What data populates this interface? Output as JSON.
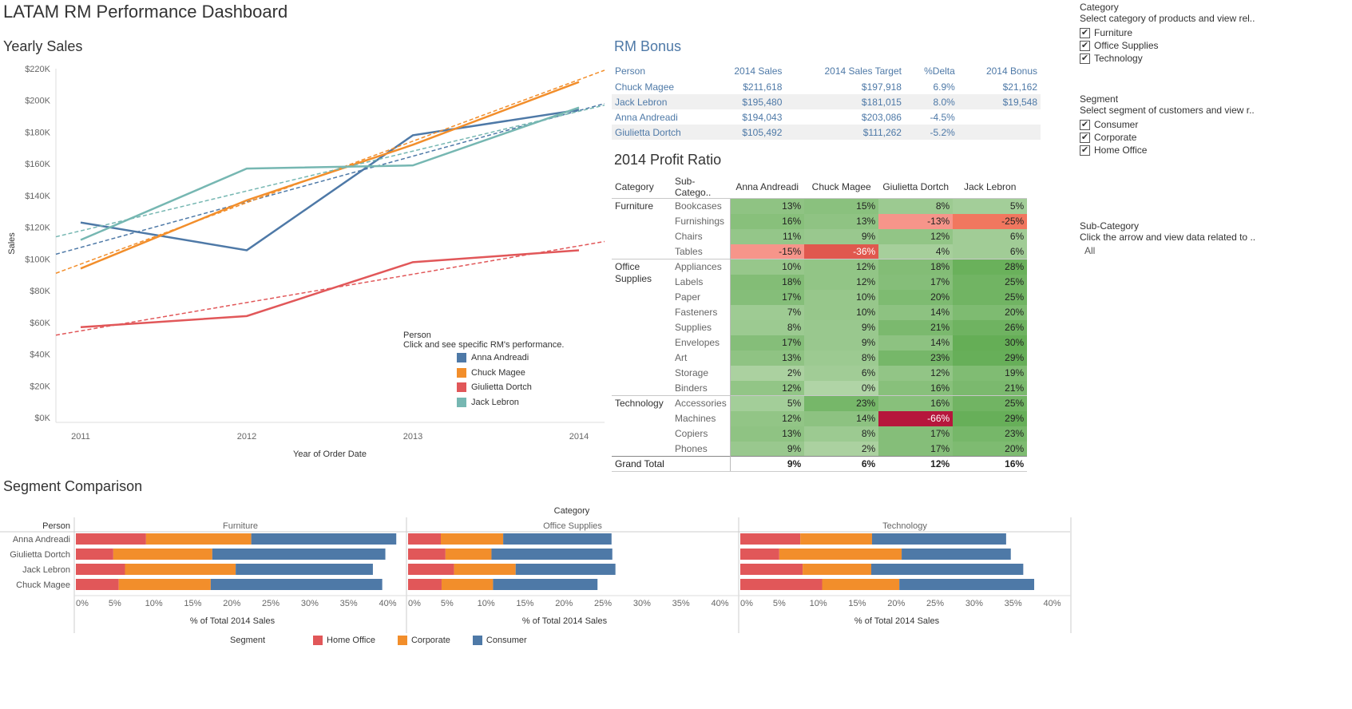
{
  "dashboard_title": "LATAM RM Performance Dashboard",
  "yearly_sales": {
    "title": "Yearly Sales",
    "legend_title": "Person",
    "legend_hint": "Click and see specific RM's performance.",
    "legend_items": [
      {
        "name": "Anna Andreadi",
        "color": "#4e79a7"
      },
      {
        "name": "Chuck Magee",
        "color": "#f28e2b"
      },
      {
        "name": "Giulietta Dortch",
        "color": "#e15759"
      },
      {
        "name": "Jack Lebron",
        "color": "#76b7b2"
      }
    ]
  },
  "chart_data": [
    {
      "type": "line",
      "title": "Yearly Sales",
      "xlabel": "Year of Order Date",
      "ylabel": "Sales",
      "x": [
        "2011",
        "2012",
        "2013",
        "2014"
      ],
      "ylim": [
        0,
        220000
      ],
      "yticks": [
        "$0K",
        "$20K",
        "$40K",
        "$60K",
        "$80K",
        "$100K",
        "$120K",
        "$140K",
        "$160K",
        "$180K",
        "$200K",
        "$220K"
      ],
      "trend_lines": true,
      "series": [
        {
          "name": "Anna Andreadi",
          "color": "#4e79a7",
          "values": [
            123000,
            105500,
            178000,
            194043
          ],
          "trend": [
            103000,
            198000
          ]
        },
        {
          "name": "Chuck Magee",
          "color": "#f28e2b",
          "values": [
            94000,
            137000,
            172000,
            211618
          ],
          "trend": [
            91000,
            219000
          ]
        },
        {
          "name": "Giulietta Dortch",
          "color": "#e15759",
          "values": [
            57000,
            64000,
            98000,
            105492
          ],
          "trend": [
            52000,
            111000
          ]
        },
        {
          "name": "Jack Lebron",
          "color": "#76b7b2",
          "values": [
            112000,
            157000,
            159000,
            195480
          ],
          "trend": [
            114000,
            197000
          ]
        }
      ]
    },
    {
      "type": "bar",
      "title": "Segment Comparison",
      "stacked": true,
      "category_label": "Category",
      "person_label": "Person",
      "xlabel": "% of Total 2014 Sales",
      "xticks": [
        "0%",
        "5%",
        "10%",
        "15%",
        "20%",
        "25%",
        "30%",
        "35%",
        "40%"
      ],
      "xlim": [
        0,
        42
      ],
      "persons": [
        "Anna Andreadi",
        "Giulietta Dortch",
        "Jack Lebron",
        "Chuck Magee"
      ],
      "segments": [
        {
          "name": "Home Office",
          "color": "#e15759"
        },
        {
          "name": "Corporate",
          "color": "#f28e2b"
        },
        {
          "name": "Consumer",
          "color": "#4e79a7"
        }
      ],
      "panels": [
        {
          "category": "Furniture",
          "values": [
            [
              9.0,
              13.5,
              18.6
            ],
            [
              4.8,
              12.7,
              22.2
            ],
            [
              6.3,
              14.2,
              17.6
            ],
            [
              5.5,
              11.8,
              22.0
            ]
          ]
        },
        {
          "category": "Office Supplies",
          "values": [
            [
              4.2,
              8.0,
              13.9
            ],
            [
              4.8,
              5.9,
              15.5
            ],
            [
              5.9,
              7.9,
              12.8
            ],
            [
              4.3,
              6.6,
              13.4
            ]
          ]
        },
        {
          "category": "Technology",
          "values": [
            [
              7.7,
              9.2,
              17.2
            ],
            [
              5.0,
              15.7,
              14.0
            ],
            [
              8.0,
              8.8,
              19.5
            ],
            [
              10.5,
              9.9,
              17.3
            ]
          ]
        }
      ],
      "legend_title": "Segment"
    }
  ],
  "rm_bonus": {
    "title": "RM Bonus",
    "headers": [
      "Person",
      "2014 Sales",
      "2014 Sales Target",
      "%Delta",
      "2014 Bonus"
    ],
    "rows": [
      [
        "Chuck Magee",
        "$211,618",
        "$197,918",
        "6.9%",
        "$21,162"
      ],
      [
        "Jack Lebron",
        "$195,480",
        "$181,015",
        "8.0%",
        "$19,548"
      ],
      [
        "Anna Andreadi",
        "$194,043",
        "$203,086",
        "-4.5%",
        ""
      ],
      [
        "Giulietta Dortch",
        "$105,492",
        "$111,262",
        "-5.2%",
        ""
      ]
    ]
  },
  "profit_ratio": {
    "title": "2014 Profit Ratio",
    "headers": [
      "Category",
      "Sub-Catego..",
      "Anna Andreadi",
      "Chuck Magee",
      "Giulietta Dortch",
      "Jack Lebron"
    ],
    "groups": [
      {
        "category": "Furniture",
        "rows": [
          {
            "sub": "Bookcases",
            "values": [
              13,
              15,
              8,
              5
            ]
          },
          {
            "sub": "Furnishings",
            "values": [
              16,
              13,
              -13,
              -25
            ]
          },
          {
            "sub": "Chairs",
            "values": [
              11,
              9,
              12,
              6
            ]
          },
          {
            "sub": "Tables",
            "values": [
              -15,
              -36,
              4,
              6
            ]
          }
        ]
      },
      {
        "category": "Office Supplies",
        "rows": [
          {
            "sub": "Appliances",
            "values": [
              10,
              12,
              18,
              28
            ]
          },
          {
            "sub": "Labels",
            "values": [
              18,
              12,
              17,
              25
            ]
          },
          {
            "sub": "Paper",
            "values": [
              17,
              10,
              20,
              25
            ]
          },
          {
            "sub": "Fasteners",
            "values": [
              7,
              10,
              14,
              20
            ]
          },
          {
            "sub": "Supplies",
            "values": [
              8,
              9,
              21,
              26
            ]
          },
          {
            "sub": "Envelopes",
            "values": [
              17,
              9,
              14,
              30
            ]
          },
          {
            "sub": "Art",
            "values": [
              13,
              8,
              23,
              29
            ]
          },
          {
            "sub": "Storage",
            "values": [
              2,
              6,
              12,
              19
            ]
          },
          {
            "sub": "Binders",
            "values": [
              12,
              0,
              16,
              21
            ]
          }
        ]
      },
      {
        "category": "Technology",
        "rows": [
          {
            "sub": "Accessories",
            "values": [
              5,
              23,
              16,
              25
            ]
          },
          {
            "sub": "Machines",
            "values": [
              12,
              14,
              -66,
              29
            ]
          },
          {
            "sub": "Copiers",
            "values": [
              13,
              8,
              17,
              23
            ]
          },
          {
            "sub": "Phones",
            "values": [
              9,
              2,
              17,
              20
            ]
          }
        ]
      }
    ],
    "total_label": "Grand Total",
    "totals": [
      "9%",
      "6%",
      "12%",
      "16%"
    ]
  },
  "segment_comparison": {
    "title": "Segment Comparison"
  },
  "filters": {
    "category": {
      "title": "Category",
      "desc": "Select category of products and view rel..",
      "options": [
        "Furniture",
        "Office Supplies",
        "Technology"
      ]
    },
    "segment": {
      "title": "Segment",
      "desc": "Select segment of customers and view r..",
      "options": [
        "Consumer",
        "Corporate",
        "Home Office"
      ]
    },
    "subcategory": {
      "title": "Sub-Category",
      "desc": "Click the arrow and view data related to ..",
      "value": "All"
    }
  }
}
